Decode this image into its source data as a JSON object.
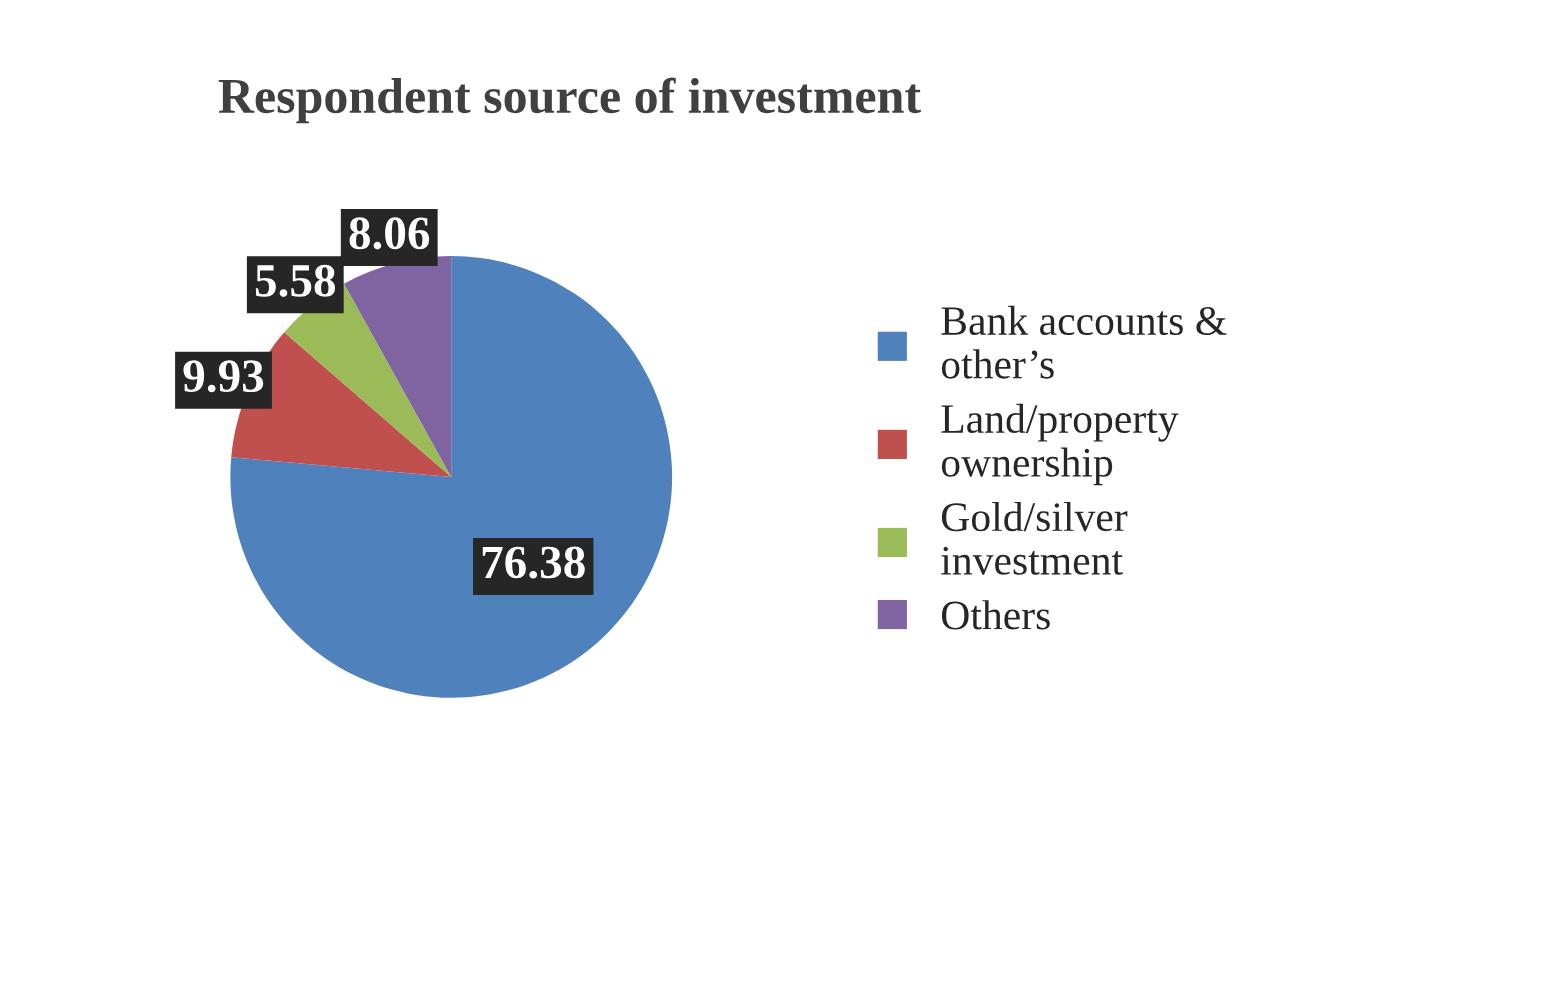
{
  "chart_data": {
    "type": "pie",
    "title": "Respondent source of investment",
    "categories": [
      "Bank accounts & other’s",
      "Land/property ownership",
      "Gold/silver investment",
      "Others"
    ],
    "values": [
      76.38,
      9.93,
      5.58,
      8.06
    ],
    "colors": [
      "#4f81bd",
      "#c0504d",
      "#9bbb59",
      "#8064a2"
    ],
    "data_labels": true,
    "legend": "right"
  }
}
